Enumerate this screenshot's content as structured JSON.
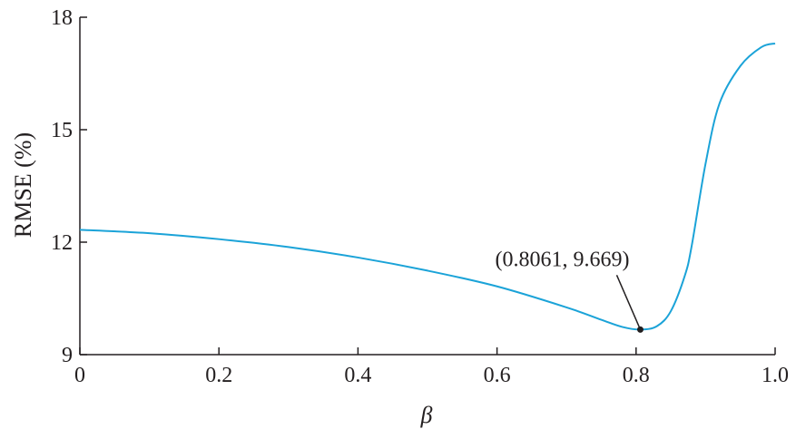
{
  "chart_data": {
    "type": "line",
    "title": "",
    "xlabel": "β",
    "ylabel": "RMSE (%)",
    "xlim": [
      0,
      1.0
    ],
    "ylim": [
      9,
      18
    ],
    "xticks": [
      0,
      0.2,
      0.4,
      0.6,
      0.8,
      1.0
    ],
    "xtick_labels": [
      "0",
      "0.2",
      "0.4",
      "0.6",
      "0.8",
      "1.0"
    ],
    "yticks": [
      9,
      12,
      15,
      18
    ],
    "ytick_labels": [
      "9",
      "12",
      "15",
      "18"
    ],
    "grid": false,
    "legend": "none",
    "series": [
      {
        "color": "#1ba3d8",
        "x": [
          0,
          0.1,
          0.2,
          0.3,
          0.4,
          0.5,
          0.6,
          0.7,
          0.75,
          0.78,
          0.8061,
          0.83,
          0.85,
          0.87,
          0.88,
          0.9,
          0.92,
          0.95,
          0.98,
          1.0
        ],
        "y": [
          12.33,
          12.24,
          12.08,
          11.87,
          11.59,
          11.24,
          10.82,
          10.26,
          9.93,
          9.74,
          9.669,
          9.76,
          10.16,
          11.1,
          11.9,
          14.1,
          15.7,
          16.7,
          17.2,
          17.3
        ]
      }
    ],
    "annotations": [
      {
        "text": "(0.8061, 9.669)",
        "x": 0.8061,
        "y": 9.669
      }
    ]
  }
}
